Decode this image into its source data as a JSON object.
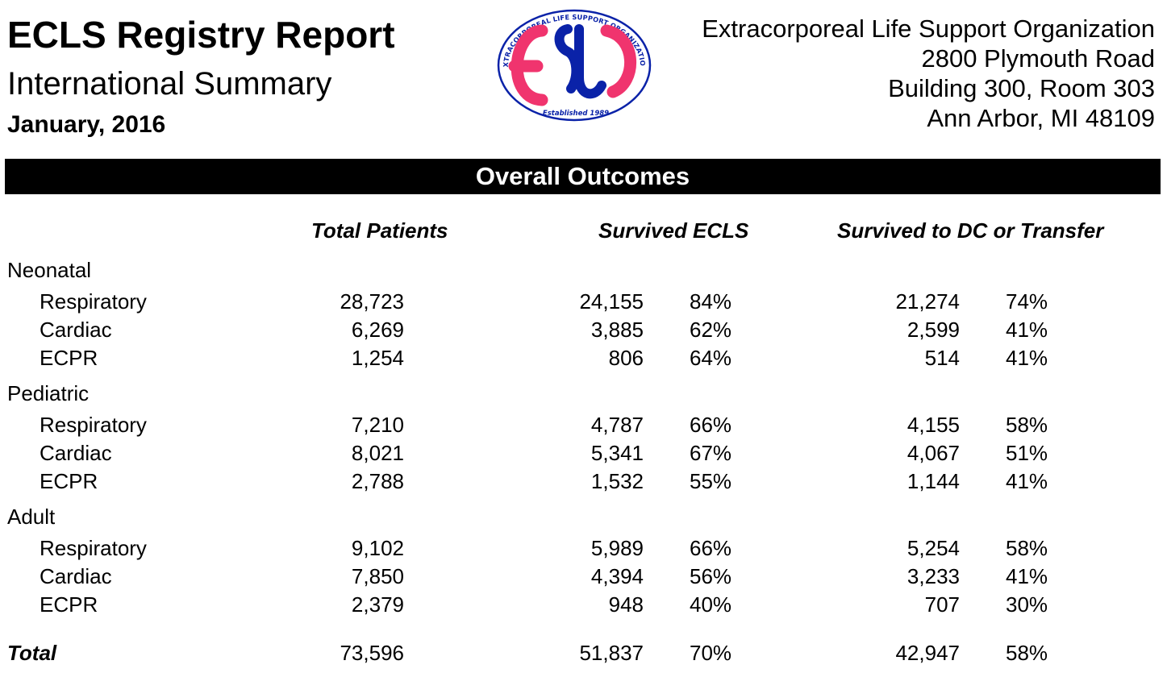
{
  "header": {
    "title": "ECLS Registry Report",
    "subtitle": "International Summary",
    "date": "January, 2016"
  },
  "logo": {
    "ring_text": "EXTRACORPOREAL LIFE SUPPORT ORGANIZATION",
    "bottom_text": "Established 1989",
    "colors": {
      "blue": "#0a22a8",
      "pink": "#f0346e"
    }
  },
  "address": {
    "org": "Extracorporeal Life Support Organization",
    "street": "2800 Plymouth Road",
    "building": "Building 300, Room 303",
    "city": "Ann Arbor, MI 48109"
  },
  "banner": {
    "label": "Overall Outcomes"
  },
  "columns": {
    "total_patients": "Total Patients",
    "survived_ecls": "Survived ECLS",
    "survived_dc": "Survived to DC or Transfer"
  },
  "sections": [
    {
      "name": "Neonatal",
      "rows": [
        {
          "label": "Respiratory",
          "total": "28,723",
          "ecls": "24,155",
          "ecls_pct": "84%",
          "dc": "21,274",
          "dc_pct": "74%"
        },
        {
          "label": "Cardiac",
          "total": "6,269",
          "ecls": "3,885",
          "ecls_pct": "62%",
          "dc": "2,599",
          "dc_pct": "41%"
        },
        {
          "label": "ECPR",
          "total": "1,254",
          "ecls": "806",
          "ecls_pct": "64%",
          "dc": "514",
          "dc_pct": "41%"
        }
      ]
    },
    {
      "name": "Pediatric",
      "rows": [
        {
          "label": "Respiratory",
          "total": "7,210",
          "ecls": "4,787",
          "ecls_pct": "66%",
          "dc": "4,155",
          "dc_pct": "58%"
        },
        {
          "label": "Cardiac",
          "total": "8,021",
          "ecls": "5,341",
          "ecls_pct": "67%",
          "dc": "4,067",
          "dc_pct": "51%"
        },
        {
          "label": "ECPR",
          "total": "2,788",
          "ecls": "1,532",
          "ecls_pct": "55%",
          "dc": "1,144",
          "dc_pct": "41%"
        }
      ]
    },
    {
      "name": "Adult",
      "rows": [
        {
          "label": "Respiratory",
          "total": "9,102",
          "ecls": "5,989",
          "ecls_pct": "66%",
          "dc": "5,254",
          "dc_pct": "58%"
        },
        {
          "label": "Cardiac",
          "total": "7,850",
          "ecls": "4,394",
          "ecls_pct": "56%",
          "dc": "3,233",
          "dc_pct": "41%"
        },
        {
          "label": "ECPR",
          "total": "2,379",
          "ecls": "948",
          "ecls_pct": "40%",
          "dc": "707",
          "dc_pct": "30%"
        }
      ]
    }
  ],
  "total": {
    "label": "Total",
    "total": "73,596",
    "ecls": "51,837",
    "ecls_pct": "70%",
    "dc": "42,947",
    "dc_pct": "58%"
  }
}
